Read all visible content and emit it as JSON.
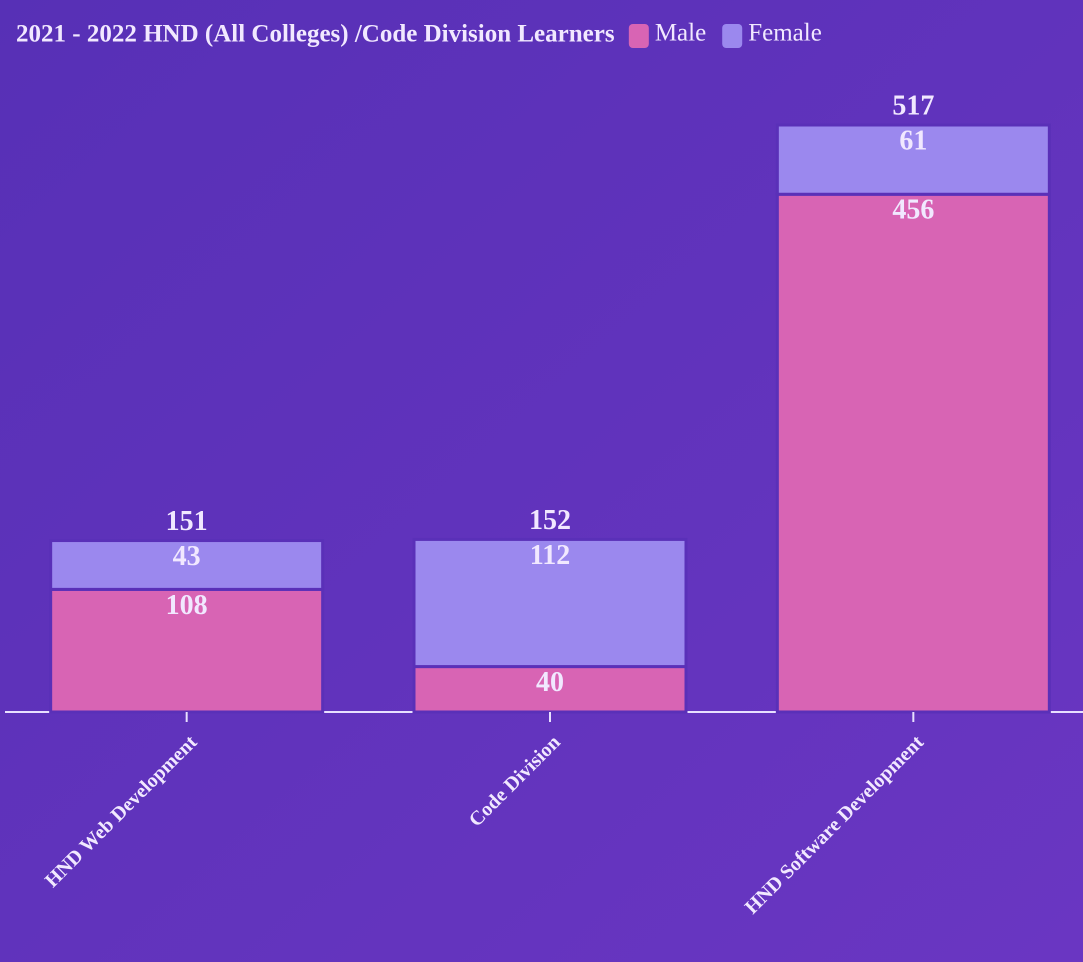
{
  "chart_data": {
    "type": "stacked_bar",
    "title": "2021 - 2022 HND (All Colleges) /Code Division Learners",
    "categories": [
      "HND Web Development",
      "Code Division",
      "HND Software Development"
    ],
    "series": [
      {
        "name": "Male",
        "color": "#d864b4",
        "values": [
          108,
          40,
          456
        ]
      },
      {
        "name": "Female",
        "color": "#9b88ee",
        "values": [
          43,
          112,
          61
        ]
      }
    ],
    "totals": [
      151,
      152,
      517
    ]
  }
}
